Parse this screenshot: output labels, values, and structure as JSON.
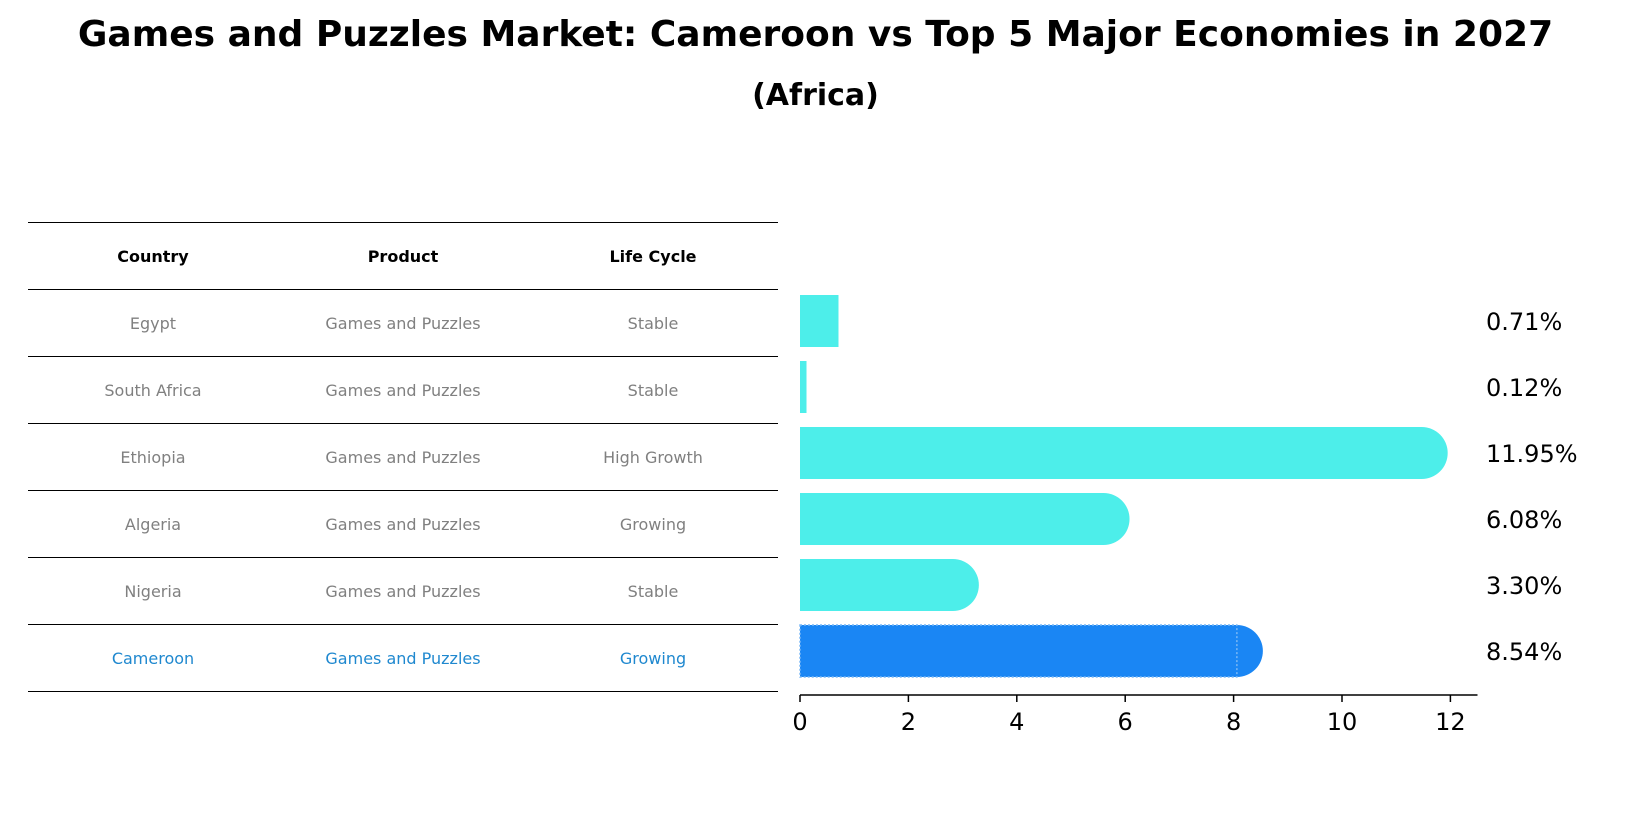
{
  "title": "Games and Puzzles Market: Cameroon vs Top 5 Major Economies in 2027",
  "subtitle": "(Africa)",
  "table": {
    "headers": [
      "Country",
      "Product",
      "Life Cycle"
    ],
    "rows": [
      [
        "Egypt",
        "Games and Puzzles",
        "Stable"
      ],
      [
        "South Africa",
        "Games and Puzzles",
        "Stable"
      ],
      [
        "Ethiopia",
        "Games and Puzzles",
        "High Growth"
      ],
      [
        "Algeria",
        "Games and Puzzles",
        "Growing"
      ],
      [
        "Nigeria",
        "Games and Puzzles",
        "Stable"
      ],
      [
        "Cameroon",
        "Games and Puzzles",
        "Growing"
      ]
    ]
  },
  "chart_data": {
    "type": "bar",
    "orientation": "horizontal",
    "categories": [
      "Egypt",
      "South Africa",
      "Ethiopia",
      "Algeria",
      "Nigeria",
      "Cameroon"
    ],
    "values": [
      0.71,
      0.12,
      11.95,
      6.08,
      3.3,
      8.54
    ],
    "value_labels": [
      "0.71%",
      "0.12%",
      "11.95%",
      "6.08%",
      "3.30%",
      "8.54%"
    ],
    "xlim": [
      0,
      12.5
    ],
    "xticks": [
      0,
      2,
      4,
      6,
      8,
      10,
      12
    ],
    "highlight_category": "Cameroon",
    "colors": {
      "bar": "#4deeea",
      "highlight": "#1a86f4",
      "highlight_text": "#1f88cf"
    }
  }
}
